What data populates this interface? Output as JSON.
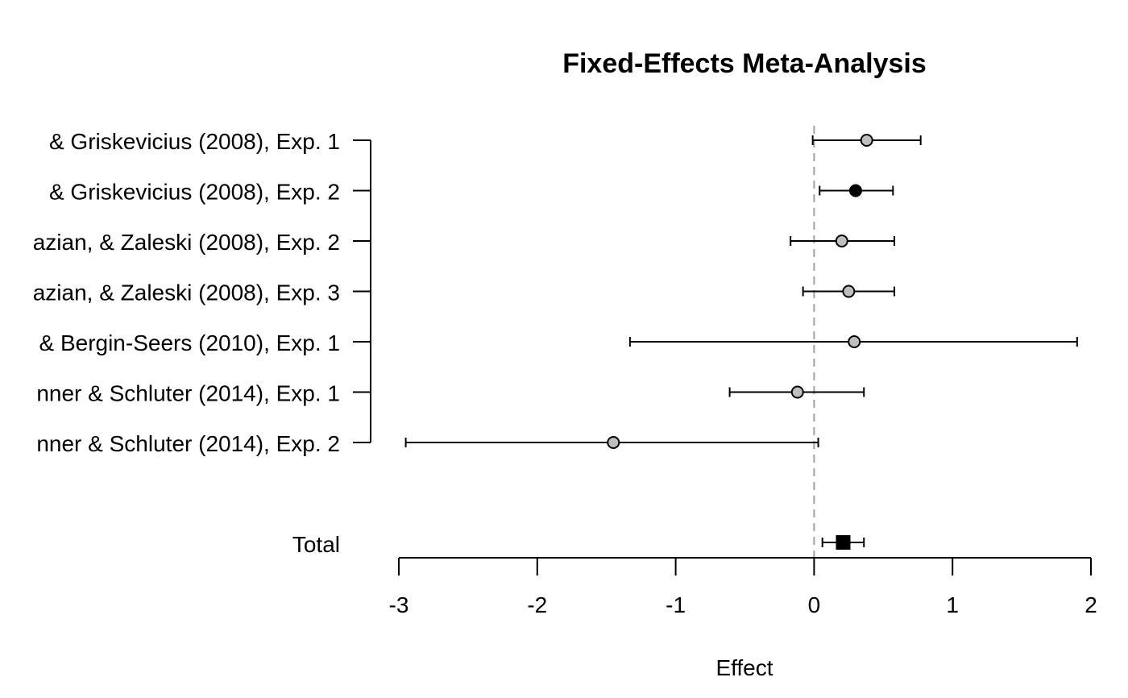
{
  "chart_data": {
    "type": "forest",
    "title": "Fixed-Effects Meta-Analysis",
    "xlabel": "Effect",
    "xlim": [
      -3,
      2
    ],
    "x_ticks": [
      -3,
      -2,
      -1,
      0,
      1,
      2
    ],
    "x_tick_labels": [
      "-3",
      "-2",
      "-1",
      "0",
      "1",
      "2"
    ],
    "reference_line": 0,
    "studies": [
      {
        "label": "& Griskevicius (2008), Exp. 1",
        "estimate": 0.38,
        "lower": -0.01,
        "upper": 0.77,
        "marker_fill": "#bebebe"
      },
      {
        "label": "& Griskevicius  (2008), Exp. 2",
        "estimate": 0.3,
        "lower": 0.04,
        "upper": 0.57,
        "marker_fill": "#000000"
      },
      {
        "label": "azian, & Zaleski (2008), Exp. 2",
        "estimate": 0.2,
        "lower": -0.17,
        "upper": 0.58,
        "marker_fill": "#bebebe"
      },
      {
        "label": "azian, & Zaleski (2008), Exp. 3",
        "estimate": 0.25,
        "lower": -0.08,
        "upper": 0.58,
        "marker_fill": "#bebebe"
      },
      {
        "label": "& Bergin-Seers (2010), Exp. 1",
        "estimate": 0.29,
        "lower": -1.33,
        "upper": 1.9,
        "marker_fill": "#bebebe"
      },
      {
        "label": "nner & Schluter (2014), Exp. 1",
        "estimate": -0.12,
        "lower": -0.61,
        "upper": 0.36,
        "marker_fill": "#bebebe"
      },
      {
        "label": "nner & Schluter (2014), Exp. 2",
        "estimate": -1.45,
        "lower": -2.95,
        "upper": 0.03,
        "marker_fill": "#bebebe"
      }
    ],
    "total": {
      "label": "Total",
      "estimate": 0.21,
      "lower": 0.06,
      "upper": 0.36
    },
    "colors": {
      "reference_line": "#a0a0a0",
      "study_marker": "#bebebe",
      "highlight_marker": "#000000",
      "total_marker": "#000000"
    }
  }
}
